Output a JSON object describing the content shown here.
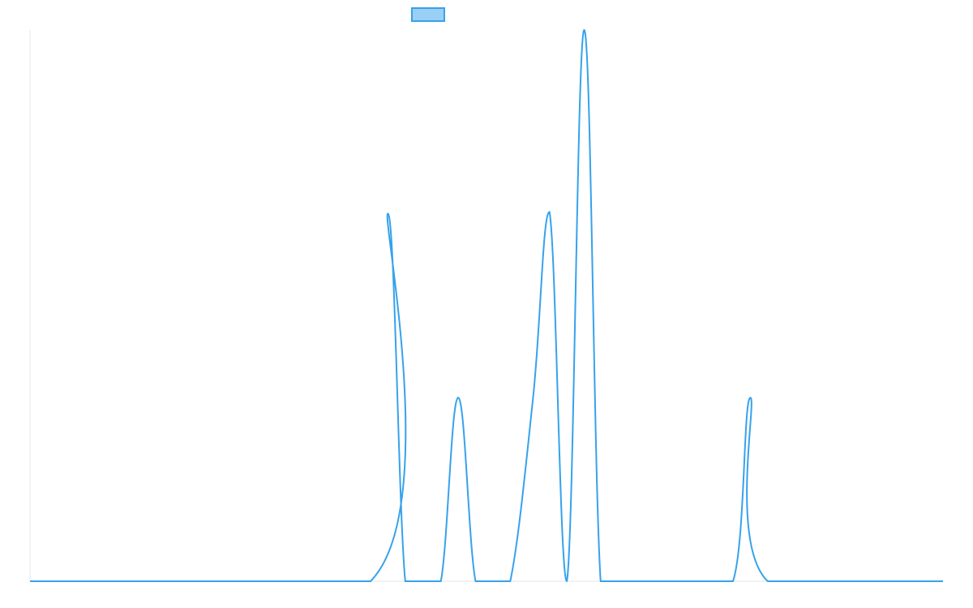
{
  "chart_data": {
    "type": "area",
    "title": "",
    "xlabel": "",
    "ylabel": "",
    "grid": false,
    "legend": {
      "placement": "top-center",
      "entries": [
        {
          "name": "",
          "color": "#36a2eb"
        }
      ]
    },
    "xlim": [
      0,
      100
    ],
    "ylim": [
      0,
      1
    ],
    "series": [
      {
        "name": "",
        "color": "#36a2eb",
        "fill": "none",
        "x": [
          0,
          37.3,
          39.2,
          41.1,
          43.0,
          45.0,
          46.9,
          48.8,
          50.8,
          52.6,
          55.1,
          56.9,
          58.8,
          60.7,
          62.5,
          64.5,
          66.4,
          68.4,
          70.4,
          72.2,
          77.0,
          78.9,
          80.8,
          100
        ],
        "y": [
          0,
          0,
          0.667,
          0,
          0,
          0,
          0.333,
          0,
          0,
          0,
          0.333,
          0.67,
          0,
          1.0,
          0,
          0,
          0,
          0,
          0,
          0,
          0,
          0.333,
          0,
          0
        ]
      }
    ]
  }
}
